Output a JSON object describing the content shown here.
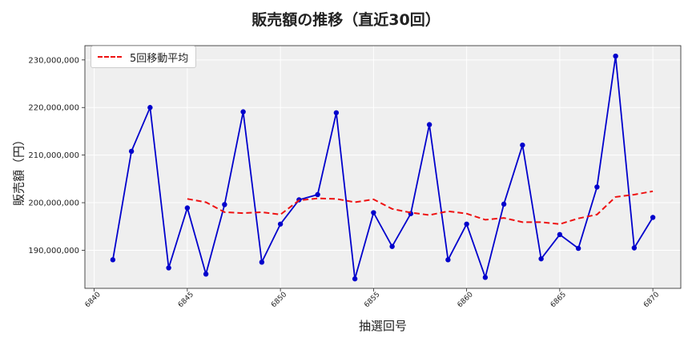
{
  "chart_data": {
    "type": "line",
    "title": "販売額の推移（直近30回）",
    "xlabel": "抽選回号",
    "ylabel": "販売額（円）",
    "xlim": [
      6839.5,
      6871.5
    ],
    "ylim": [
      182000000,
      233000000
    ],
    "x_ticks": [
      6840,
      6845,
      6850,
      6855,
      6860,
      6865,
      6870
    ],
    "y_ticks": [
      190000000,
      200000000,
      210000000,
      220000000,
      230000000
    ],
    "y_tick_labels": [
      "190,000,000",
      "200,000,000",
      "210,000,000",
      "220,000,000",
      "230,000,000"
    ],
    "grid": true,
    "legend_position": "top-left",
    "series": [
      {
        "style": "line-marker",
        "color": "#0000cc",
        "x": [
          6841,
          6842,
          6843,
          6844,
          6845,
          6846,
          6847,
          6848,
          6849,
          6850,
          6851,
          6852,
          6853,
          6854,
          6855,
          6856,
          6857,
          6858,
          6859,
          6860,
          6861,
          6862,
          6863,
          6864,
          6865,
          6866,
          6867,
          6868,
          6869,
          6870
        ],
        "values": [
          188000000,
          210800000,
          220000000,
          186300000,
          198900000,
          185000000,
          199600000,
          219100000,
          187500000,
          195500000,
          200600000,
          201700000,
          218900000,
          184000000,
          197900000,
          190800000,
          197700000,
          216400000,
          188000000,
          195500000,
          184300000,
          199700000,
          212100000,
          188200000,
          193300000,
          190400000,
          203300000,
          230800000,
          190500000,
          196900000
        ]
      },
      {
        "name": "5回移動平均",
        "style": "dashed",
        "color": "#ee1111",
        "x": [
          6845,
          6846,
          6847,
          6848,
          6849,
          6850,
          6851,
          6852,
          6853,
          6854,
          6855,
          6856,
          6857,
          6858,
          6859,
          6860,
          6861,
          6862,
          6863,
          6864,
          6865,
          6866,
          6867,
          6868,
          6869,
          6870
        ],
        "values": [
          200800000,
          200100000,
          198000000,
          197800000,
          198000000,
          197500000,
          200500000,
          200900000,
          200800000,
          200100000,
          200700000,
          198700000,
          197900000,
          197400000,
          198200000,
          197700000,
          196400000,
          196800000,
          195900000,
          195900000,
          195500000,
          196700000,
          197500000,
          201200000,
          201700000,
          202400000
        ]
      }
    ]
  }
}
